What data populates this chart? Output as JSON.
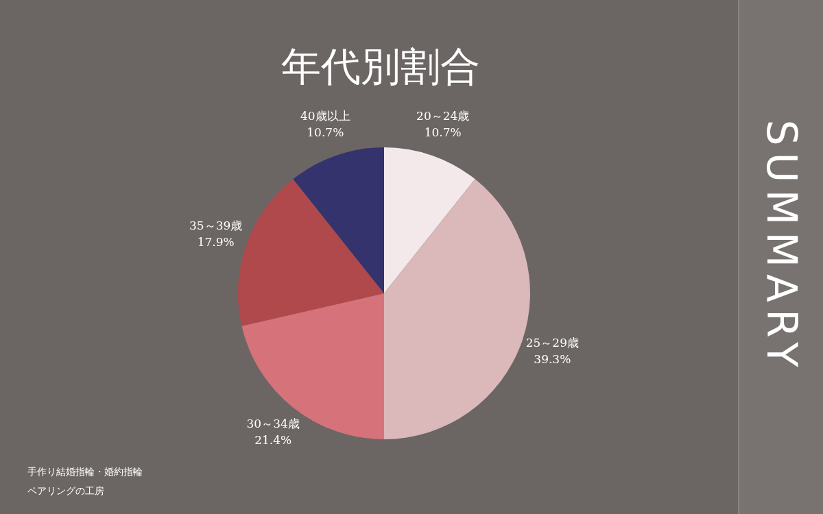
{
  "chart_data": {
    "type": "pie",
    "title": "年代別割合",
    "categories": [
      "20～24歳",
      "25～29歳",
      "30～34歳",
      "35～39歳",
      "40歳以上"
    ],
    "values": [
      10.7,
      39.3,
      21.4,
      17.9,
      10.7
    ],
    "colors": [
      "#f3e9ea",
      "#dbb8ba",
      "#d6737a",
      "#b0494c",
      "#34336e"
    ],
    "value_labels": [
      "10.7%",
      "39.3%",
      "21.4%",
      "17.9%",
      "10.7%"
    ],
    "legend": false,
    "annotations": [
      "SUMMARY",
      "手作り結婚指輪・婚約指輪",
      "ペアリングの工房"
    ]
  }
}
